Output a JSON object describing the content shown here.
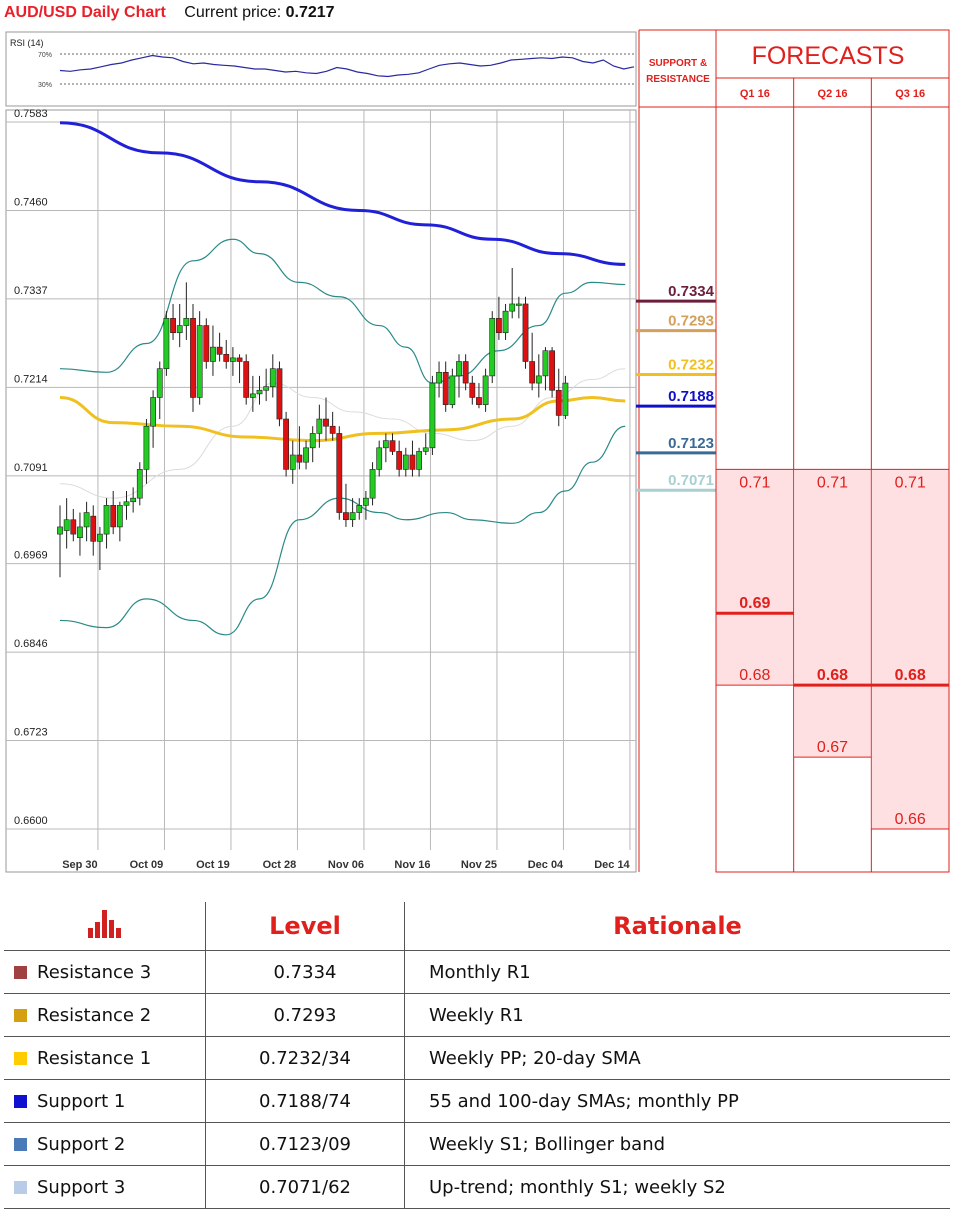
{
  "header": {
    "title": "AUD/USD Daily Chart",
    "price_label": "Current price:",
    "price_value": "0.7217"
  },
  "rsi": {
    "label": "RSI (14)",
    "level_high": "70%",
    "level_low": "30%",
    "values": [
      48,
      47,
      49,
      50,
      53,
      56,
      58,
      62,
      65,
      68,
      66,
      65,
      60,
      57,
      58,
      56,
      55,
      54,
      52,
      50,
      50,
      48,
      46,
      47,
      45,
      44,
      47,
      52,
      50,
      46,
      44,
      41,
      40,
      42,
      43,
      45,
      50,
      55,
      57,
      58,
      56,
      54,
      55,
      58,
      62,
      63,
      64,
      65,
      64,
      66,
      65,
      60,
      58,
      62,
      54,
      50,
      53
    ]
  },
  "chart_data": {
    "type": "candlestick",
    "title": "AUD/USD Daily Chart",
    "y_ticks": [
      "0.7583",
      "0.7460",
      "0.7337",
      "0.7214",
      "0.7091",
      "0.6969",
      "0.6846",
      "0.6723",
      "0.6600"
    ],
    "ylim": [
      0.66,
      0.7583
    ],
    "x_ticks": [
      {
        "label": "Sep 30",
        "index": 3
      },
      {
        "label": "Oct 09",
        "index": 13
      },
      {
        "label": "Oct 19",
        "index": 23
      },
      {
        "label": "Oct 28",
        "index": 33
      },
      {
        "label": "Nov 06",
        "index": 43
      },
      {
        "label": "Nov 16",
        "index": 53
      },
      {
        "label": "Nov 25",
        "index": 63
      },
      {
        "label": "Dec 04",
        "index": 73
      },
      {
        "label": "Dec 14",
        "index": 83
      }
    ],
    "candles": [
      [
        0.701,
        0.705,
        0.695,
        0.702
      ],
      [
        0.7015,
        0.706,
        0.699,
        0.703
      ],
      [
        0.703,
        0.7045,
        0.7,
        0.701
      ],
      [
        0.7005,
        0.704,
        0.698,
        0.702
      ],
      [
        0.702,
        0.7055,
        0.7,
        0.704
      ],
      [
        0.7035,
        0.705,
        0.698,
        0.7
      ],
      [
        0.7,
        0.702,
        0.696,
        0.701
      ],
      [
        0.701,
        0.706,
        0.699,
        0.705
      ],
      [
        0.705,
        0.707,
        0.701,
        0.702
      ],
      [
        0.702,
        0.7055,
        0.7,
        0.705
      ],
      [
        0.705,
        0.707,
        0.703,
        0.7055
      ],
      [
        0.7055,
        0.7075,
        0.704,
        0.706
      ],
      [
        0.706,
        0.711,
        0.705,
        0.71
      ],
      [
        0.71,
        0.717,
        0.708,
        0.716
      ],
      [
        0.716,
        0.721,
        0.713,
        0.72
      ],
      [
        0.72,
        0.725,
        0.717,
        0.724
      ],
      [
        0.724,
        0.732,
        0.723,
        0.731
      ],
      [
        0.731,
        0.733,
        0.728,
        0.729
      ],
      [
        0.729,
        0.733,
        0.727,
        0.73
      ],
      [
        0.73,
        0.736,
        0.728,
        0.731
      ],
      [
        0.731,
        0.733,
        0.718,
        0.72
      ],
      [
        0.72,
        0.732,
        0.719,
        0.73
      ],
      [
        0.73,
        0.731,
        0.724,
        0.725
      ],
      [
        0.725,
        0.73,
        0.723,
        0.727
      ],
      [
        0.727,
        0.729,
        0.725,
        0.726
      ],
      [
        0.726,
        0.728,
        0.724,
        0.725
      ],
      [
        0.725,
        0.727,
        0.723,
        0.7255
      ],
      [
        0.7255,
        0.726,
        0.722,
        0.725
      ],
      [
        0.725,
        0.726,
        0.719,
        0.72
      ],
      [
        0.72,
        0.723,
        0.718,
        0.7205
      ],
      [
        0.7205,
        0.723,
        0.719,
        0.721
      ],
      [
        0.721,
        0.724,
        0.7195,
        0.7215
      ],
      [
        0.7215,
        0.726,
        0.72,
        0.724
      ],
      [
        0.724,
        0.725,
        0.716,
        0.717
      ],
      [
        0.717,
        0.718,
        0.709,
        0.71
      ],
      [
        0.71,
        0.714,
        0.708,
        0.712
      ],
      [
        0.712,
        0.716,
        0.71,
        0.711
      ],
      [
        0.711,
        0.714,
        0.71,
        0.713
      ],
      [
        0.713,
        0.716,
        0.711,
        0.715
      ],
      [
        0.715,
        0.719,
        0.713,
        0.717
      ],
      [
        0.717,
        0.72,
        0.714,
        0.716
      ],
      [
        0.716,
        0.718,
        0.714,
        0.715
      ],
      [
        0.715,
        0.716,
        0.703,
        0.704
      ],
      [
        0.704,
        0.708,
        0.702,
        0.703
      ],
      [
        0.703,
        0.706,
        0.702,
        0.704
      ],
      [
        0.704,
        0.706,
        0.703,
        0.705
      ],
      [
        0.705,
        0.707,
        0.703,
        0.706
      ],
      [
        0.706,
        0.711,
        0.705,
        0.71
      ],
      [
        0.71,
        0.714,
        0.709,
        0.713
      ],
      [
        0.713,
        0.715,
        0.711,
        0.714
      ],
      [
        0.714,
        0.715,
        0.712,
        0.7125
      ],
      [
        0.7125,
        0.714,
        0.709,
        0.71
      ],
      [
        0.71,
        0.713,
        0.709,
        0.712
      ],
      [
        0.712,
        0.714,
        0.709,
        0.71
      ],
      [
        0.71,
        0.713,
        0.709,
        0.7125
      ],
      [
        0.7125,
        0.715,
        0.712,
        0.713
      ],
      [
        0.713,
        0.723,
        0.712,
        0.722
      ],
      [
        0.722,
        0.725,
        0.72,
        0.7235
      ],
      [
        0.7235,
        0.725,
        0.718,
        0.719
      ],
      [
        0.719,
        0.724,
        0.7185,
        0.723
      ],
      [
        0.723,
        0.726,
        0.72,
        0.725
      ],
      [
        0.725,
        0.726,
        0.721,
        0.722
      ],
      [
        0.722,
        0.723,
        0.719,
        0.72
      ],
      [
        0.72,
        0.722,
        0.7185,
        0.719
      ],
      [
        0.719,
        0.724,
        0.718,
        0.723
      ],
      [
        0.723,
        0.732,
        0.722,
        0.731
      ],
      [
        0.731,
        0.734,
        0.728,
        0.729
      ],
      [
        0.729,
        0.733,
        0.728,
        0.732
      ],
      [
        0.732,
        0.738,
        0.731,
        0.733
      ],
      [
        0.733,
        0.734,
        0.731,
        0.733
      ],
      [
        0.733,
        0.734,
        0.724,
        0.725
      ],
      [
        0.725,
        0.729,
        0.721,
        0.722
      ],
      [
        0.722,
        0.726,
        0.72,
        0.723
      ],
      [
        0.723,
        0.727,
        0.721,
        0.7265
      ],
      [
        0.7265,
        0.727,
        0.72,
        0.721
      ],
      [
        0.721,
        0.724,
        0.716,
        0.7175
      ],
      [
        0.7175,
        0.723,
        0.717,
        0.722
      ]
    ],
    "ema_blue": [
      [
        0,
        0.7582
      ],
      [
        15,
        0.754
      ],
      [
        30,
        0.75
      ],
      [
        45,
        0.746
      ],
      [
        55,
        0.744
      ],
      [
        65,
        0.742
      ],
      [
        75,
        0.74
      ],
      [
        85,
        0.7385
      ]
    ],
    "sma_yellow": [
      [
        0,
        0.72
      ],
      [
        8,
        0.7165
      ],
      [
        18,
        0.716
      ],
      [
        28,
        0.7145
      ],
      [
        38,
        0.714
      ],
      [
        48,
        0.715
      ],
      [
        58,
        0.7155
      ],
      [
        68,
        0.717
      ],
      [
        75,
        0.7195
      ],
      [
        80,
        0.72
      ],
      [
        85,
        0.7195
      ]
    ],
    "bb_upper": [
      [
        0,
        0.724
      ],
      [
        7,
        0.7235
      ],
      [
        13,
        0.7275
      ],
      [
        20,
        0.739
      ],
      [
        26,
        0.742
      ],
      [
        30,
        0.74
      ],
      [
        36,
        0.736
      ],
      [
        42,
        0.734
      ],
      [
        48,
        0.73
      ],
      [
        52,
        0.727
      ],
      [
        56,
        0.722
      ],
      [
        60,
        0.723
      ],
      [
        66,
        0.7265
      ],
      [
        72,
        0.73
      ],
      [
        76,
        0.7345
      ],
      [
        80,
        0.736
      ],
      [
        85,
        0.7357
      ]
    ],
    "bb_lower": [
      [
        0,
        0.689
      ],
      [
        7,
        0.688
      ],
      [
        13,
        0.692
      ],
      [
        20,
        0.689
      ],
      [
        25,
        0.687
      ],
      [
        30,
        0.692
      ],
      [
        36,
        0.703
      ],
      [
        42,
        0.706
      ],
      [
        48,
        0.704
      ],
      [
        52,
        0.703
      ],
      [
        58,
        0.704
      ],
      [
        62,
        0.703
      ],
      [
        68,
        0.7025
      ],
      [
        72,
        0.704
      ],
      [
        76,
        0.707
      ],
      [
        80,
        0.711
      ],
      [
        85,
        0.716
      ]
    ],
    "bb_mid": [
      [
        0,
        0.708
      ],
      [
        8,
        0.706
      ],
      [
        18,
        0.71
      ],
      [
        26,
        0.716
      ],
      [
        32,
        0.722
      ],
      [
        38,
        0.72
      ],
      [
        44,
        0.718
      ],
      [
        50,
        0.717
      ],
      [
        56,
        0.715
      ],
      [
        62,
        0.714
      ],
      [
        68,
        0.716
      ],
      [
        74,
        0.72
      ],
      [
        80,
        0.7225
      ],
      [
        85,
        0.724
      ]
    ]
  },
  "support_resistance": {
    "header": "SUPPORT & RESISTANCE",
    "levels": [
      {
        "value": "0.7334",
        "color": "#6b1f3a"
      },
      {
        "value": "0.7293",
        "color": "#d4a05c"
      },
      {
        "value": "0.7232",
        "color": "#f0c020"
      },
      {
        "value": "0.7188",
        "color": "#1010c8"
      },
      {
        "value": "0.7123",
        "color": "#3a6a96"
      },
      {
        "value": "0.7071",
        "color": "#a8d0d0"
      }
    ]
  },
  "forecasts": {
    "title": "FORECASTS",
    "quarters": [
      {
        "label": "Q1 16",
        "high": "0.71",
        "mid": "0.69",
        "low": "0.68",
        "bold": "mid"
      },
      {
        "label": "Q2 16",
        "high": "0.71",
        "mid": "0.68",
        "low": "0.67",
        "bold": "mid"
      },
      {
        "label": "Q3 16",
        "high": "0.71",
        "mid": "0.68",
        "low": "0.66",
        "bold": "mid"
      }
    ]
  },
  "table": {
    "col_level": "Level",
    "col_rationale": "Rationale",
    "rows": [
      {
        "name": "Resistance 3",
        "level": "0.7334",
        "rationale": "Monthly R1",
        "color": "#a04040"
      },
      {
        "name": "Resistance 2",
        "level": "0.7293",
        "rationale": "Weekly R1",
        "color": "#d4a010"
      },
      {
        "name": "Resistance 1",
        "level": "0.7232/34",
        "rationale": "Weekly PP; 20-day SMA",
        "color": "#ffcc00"
      },
      {
        "name": "Support 1",
        "level": "0.7188/74",
        "rationale": "55 and 100-day SMAs; monthly PP",
        "color": "#1010d0"
      },
      {
        "name": "Support 2",
        "level": "0.7123/09",
        "rationale": "Weekly S1; Bollinger band",
        "color": "#4a7ab8"
      },
      {
        "name": "Support 3",
        "level": "0.7071/62",
        "rationale": "Up-trend; monthly S1; weekly S2",
        "color": "#b8cce8"
      }
    ]
  }
}
